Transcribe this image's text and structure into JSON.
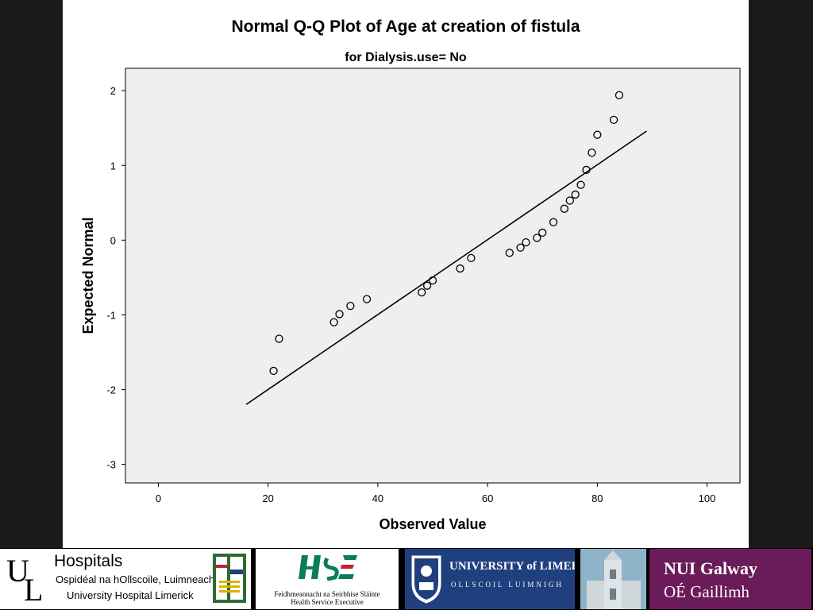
{
  "chart_data": {
    "type": "scatter",
    "title": "Normal Q-Q Plot of Age at creation of fistula",
    "subtitle": "for Dialysis.use= No",
    "xlabel": "Observed Value",
    "ylabel": "Expected Normal",
    "xlim": [
      -6,
      106
    ],
    "ylim": [
      -3.25,
      2.3
    ],
    "xticks": [
      0,
      20,
      40,
      60,
      80,
      100
    ],
    "yticks": [
      -3,
      -2,
      -1,
      0,
      1,
      2
    ],
    "grid": false,
    "plot_background": "#efefef",
    "marker": "open-circle",
    "points": [
      {
        "x": 21,
        "y": -1.75
      },
      {
        "x": 22,
        "y": -1.32
      },
      {
        "x": 32,
        "y": -1.1
      },
      {
        "x": 33,
        "y": -0.99
      },
      {
        "x": 35,
        "y": -0.88
      },
      {
        "x": 38,
        "y": -0.79
      },
      {
        "x": 48,
        "y": -0.7
      },
      {
        "x": 49,
        "y": -0.61
      },
      {
        "x": 50,
        "y": -0.54
      },
      {
        "x": 55,
        "y": -0.38
      },
      {
        "x": 57,
        "y": -0.24
      },
      {
        "x": 64,
        "y": -0.17
      },
      {
        "x": 66,
        "y": -0.1
      },
      {
        "x": 67,
        "y": -0.03
      },
      {
        "x": 69,
        "y": 0.03
      },
      {
        "x": 70,
        "y": 0.1
      },
      {
        "x": 72,
        "y": 0.24
      },
      {
        "x": 74,
        "y": 0.42
      },
      {
        "x": 75,
        "y": 0.53
      },
      {
        "x": 76,
        "y": 0.61
      },
      {
        "x": 77,
        "y": 0.74
      },
      {
        "x": 78,
        "y": 0.94
      },
      {
        "x": 79,
        "y": 1.17
      },
      {
        "x": 80,
        "y": 1.41
      },
      {
        "x": 83,
        "y": 1.61
      },
      {
        "x": 84,
        "y": 1.94
      }
    ],
    "reference_line": {
      "x": [
        16,
        89
      ],
      "y": [
        -2.2,
        1.46
      ]
    }
  },
  "footer": {
    "ul_hospitals": {
      "title": "Hospitals",
      "irish": "Ospidéal na hOllscoile, Luimneach",
      "english": "University Hospital Limerick",
      "mark_u": "U",
      "mark_l": "L"
    },
    "hse": {
      "irish": "Feidhmeannacht na Seirbhíse Sláinte",
      "english": "Health Service Executive"
    },
    "university_of_limerick": {
      "name": "UNIVERSITY of LIMERICK",
      "irish": "OLLSCOIL LUIMNIGH"
    },
    "nui_galway": {
      "name": "NUI Galway",
      "irish": "OÉ Gaillimh"
    }
  },
  "colors": {
    "ul_brand": "#1f3f7f",
    "nui_brand": "#6b1a5a",
    "hse_green": "#0c7c5a",
    "hse_red": "#c8202f"
  }
}
